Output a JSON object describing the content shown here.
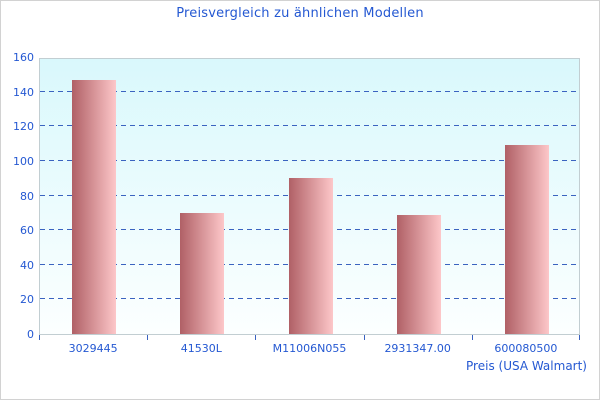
{
  "chart_data": {
    "type": "bar",
    "title": "Preisvergleich zu ähnlichen Modellen",
    "xlabel": "Preis (USA Walmart)",
    "ylabel": "",
    "categories": [
      "3029445",
      "41530L",
      "M11006N055",
      "2931347.00",
      "600080500"
    ],
    "values": [
      147,
      70,
      90,
      69,
      109
    ],
    "ylim": [
      0,
      160
    ],
    "yticks": [
      0,
      20,
      40,
      60,
      80,
      100,
      120,
      140,
      160
    ],
    "grid": "dashed-horizontal",
    "legend": "none",
    "colors": {
      "text_blue": "#2458d2",
      "gridline_blue": "#3a63c0",
      "tick_blue": "#3a63c0",
      "bar_gradient_left": "#b06066",
      "bar_gradient_right": "#fdc7c9",
      "plot_bg_top": "#d9f8fc",
      "plot_bg_bottom": "#fcffff",
      "plot_border": "#c2ced2",
      "frame_border": "#d2d2d2"
    }
  }
}
